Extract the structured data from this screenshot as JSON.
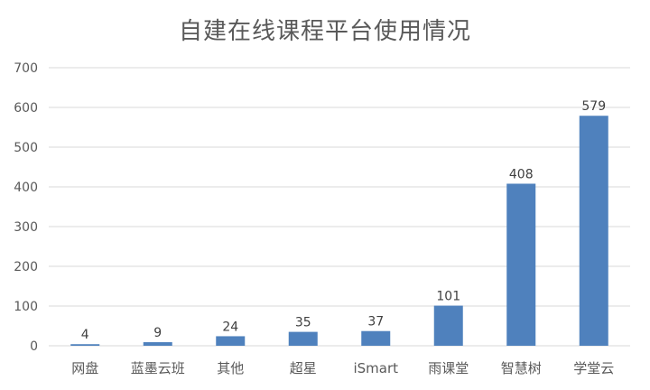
{
  "chart_data": {
    "type": "bar",
    "title": "自建在线课程平台使用情况",
    "categories": [
      "网盘",
      "蓝墨云班",
      "其他",
      "超星",
      "iSmart",
      "雨课堂",
      "智慧树",
      "学堂云"
    ],
    "values": [
      4,
      9,
      24,
      35,
      37,
      101,
      408,
      579
    ],
    "ylim": [
      0,
      700
    ],
    "yticks": [
      0,
      100,
      200,
      300,
      400,
      500,
      600,
      700
    ],
    "xlabel": "",
    "ylabel": "",
    "grid": true,
    "legend": "none",
    "bar_color": "#4F81BD",
    "grid_color": "#D9D9D9"
  }
}
